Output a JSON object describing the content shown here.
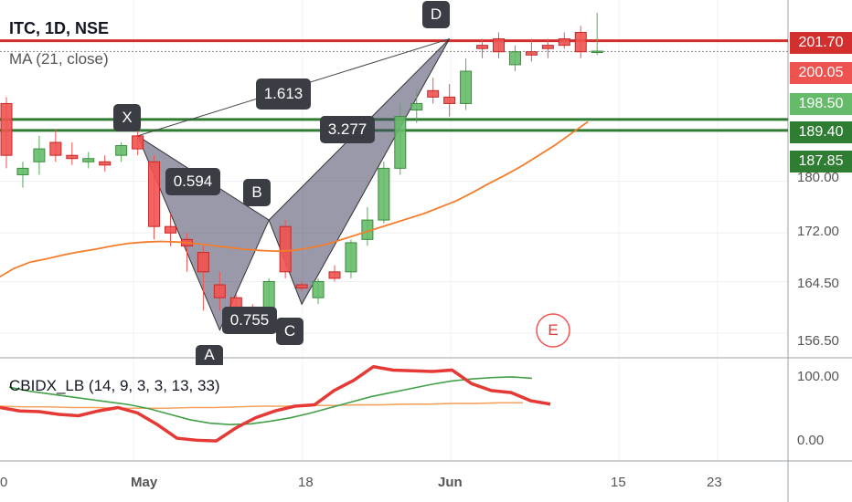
{
  "header": {
    "title": "ITC, 1D, NSE",
    "ma_label": "MA (21, close)"
  },
  "oscillator": {
    "label": "CBIDX_LB (14, 9, 3, 3, 13, 33)",
    "ticks": [
      "100.00",
      "0.00"
    ]
  },
  "price_axis": {
    "ticks": [
      "180.00",
      "172.00",
      "164.50",
      "156.50"
    ]
  },
  "time_axis": {
    "ticks": [
      "0",
      "May",
      "18",
      "Jun",
      "15",
      "23"
    ]
  },
  "price_badges": [
    {
      "value": "201.70",
      "color": "#d32f2f"
    },
    {
      "value": "200.05",
      "color": "#ef5350"
    },
    {
      "value": "198.50",
      "color": "#66bb6a"
    },
    {
      "value": "189.40",
      "color": "#2e7d32"
    },
    {
      "value": "187.85",
      "color": "#2e7d32"
    }
  ],
  "pattern": {
    "points": [
      {
        "label": "X",
        "price": 187.0
      },
      {
        "label": "A",
        "price": 157.0
      },
      {
        "label": "B",
        "price": 174.0
      },
      {
        "label": "C",
        "price": 161.0
      },
      {
        "label": "D",
        "price": 202.0
      }
    ],
    "ratios": [
      "0.594",
      "0.755",
      "3.277",
      "1.613"
    ],
    "marker": "E"
  },
  "chart_data": {
    "type": "candlestick",
    "title": "ITC, 1D, NSE",
    "price_range": [
      153,
      208
    ],
    "candles": [
      {
        "o": 192,
        "h": 193,
        "l": 182,
        "c": 184
      },
      {
        "o": 181,
        "h": 183,
        "l": 179,
        "c": 182
      },
      {
        "o": 183,
        "h": 187,
        "l": 181,
        "c": 185
      },
      {
        "o": 186,
        "h": 188,
        "l": 183,
        "c": 184
      },
      {
        "o": 184,
        "h": 186,
        "l": 182.5,
        "c": 183.5
      },
      {
        "o": 183,
        "h": 184.5,
        "l": 182,
        "c": 183.5
      },
      {
        "o": 183,
        "h": 184,
        "l": 181.5,
        "c": 182.5
      },
      {
        "o": 184,
        "h": 186,
        "l": 183,
        "c": 185.5
      },
      {
        "o": 187,
        "h": 188,
        "l": 184,
        "c": 185
      },
      {
        "o": 183,
        "h": 184,
        "l": 171,
        "c": 173
      },
      {
        "o": 173,
        "h": 175,
        "l": 170,
        "c": 172
      },
      {
        "o": 171,
        "h": 172,
        "l": 166,
        "c": 170
      },
      {
        "o": 169,
        "h": 170,
        "l": 160,
        "c": 166
      },
      {
        "o": 164,
        "h": 166,
        "l": 160,
        "c": 162
      },
      {
        "o": 162,
        "h": 162.5,
        "l": 157,
        "c": 158
      },
      {
        "o": 160,
        "h": 161,
        "l": 157.5,
        "c": 159
      },
      {
        "o": 158,
        "h": 165,
        "l": 157,
        "c": 164.5
      },
      {
        "o": 173,
        "h": 174,
        "l": 165,
        "c": 166
      },
      {
        "o": 164,
        "h": 164.5,
        "l": 163,
        "c": 163.5
      },
      {
        "o": 162,
        "h": 165,
        "l": 161,
        "c": 164.5
      },
      {
        "o": 166,
        "h": 167,
        "l": 164.5,
        "c": 165
      },
      {
        "o": 166,
        "h": 171,
        "l": 165,
        "c": 170.5
      },
      {
        "o": 171,
        "h": 176,
        "l": 170,
        "c": 174
      },
      {
        "o": 174,
        "h": 183,
        "l": 173.5,
        "c": 182
      },
      {
        "o": 182,
        "h": 192,
        "l": 181,
        "c": 190
      },
      {
        "o": 191,
        "h": 194,
        "l": 189,
        "c": 192
      },
      {
        "o": 194,
        "h": 196,
        "l": 192,
        "c": 193
      },
      {
        "o": 193,
        "h": 195,
        "l": 190,
        "c": 192
      },
      {
        "o": 192,
        "h": 199,
        "l": 191,
        "c": 197
      },
      {
        "o": 201,
        "h": 202,
        "l": 199,
        "c": 200.5
      },
      {
        "o": 202,
        "h": 203,
        "l": 199,
        "c": 200
      },
      {
        "o": 198,
        "h": 201,
        "l": 197,
        "c": 200
      },
      {
        "o": 200,
        "h": 202,
        "l": 198.5,
        "c": 199.5
      },
      {
        "o": 201,
        "h": 202,
        "l": 199,
        "c": 200.5
      },
      {
        "o": 202,
        "h": 203,
        "l": 200.5,
        "c": 201
      },
      {
        "o": 203,
        "h": 204,
        "l": 199,
        "c": 200
      },
      {
        "o": 200,
        "h": 206,
        "l": 199.5,
        "c": 200.1
      }
    ],
    "ma": [
      165,
      166.5,
      167.5,
      168,
      168.6,
      169.1,
      169.5,
      170,
      170.4,
      170.6,
      170.7,
      170.6,
      170.4,
      170.1,
      169.8,
      169.5,
      169.3,
      169.2,
      169.3,
      169.7,
      170.2,
      171,
      171.8,
      172.6,
      173.4,
      174.2,
      175,
      176,
      177,
      178.3,
      179.7,
      181,
      182.4,
      184,
      185.6,
      187.4,
      189.2
    ],
    "osc_range": [
      -15,
      115
    ],
    "osc_fast": [
      50,
      45,
      44,
      40,
      38,
      45,
      50,
      42,
      25,
      5,
      2,
      1,
      20,
      35,
      45,
      52,
      54,
      75,
      90,
      110,
      105,
      104,
      103,
      105,
      85,
      75,
      72,
      60,
      55
    ],
    "osc_signal": [
      80,
      74,
      70,
      66,
      62,
      58,
      54,
      48,
      40,
      32,
      27,
      25,
      26,
      30,
      35,
      42,
      50,
      58,
      66,
      72,
      78,
      84,
      89,
      92,
      94,
      95,
      93
    ],
    "osc_third": [
      52,
      51,
      51,
      50,
      50,
      49,
      49,
      49,
      50,
      50,
      51,
      52,
      52,
      53,
      53,
      54,
      54,
      55,
      55,
      56,
      56,
      57,
      57
    ]
  }
}
